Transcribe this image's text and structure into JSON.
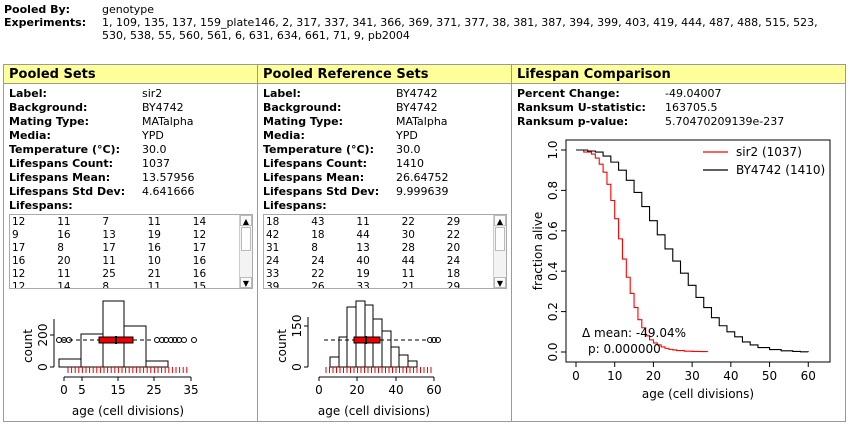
{
  "header": {
    "pooled_by_label": "Pooled By:",
    "pooled_by_value": "genotype",
    "experiments_label": "Experiments:",
    "experiments_line1": "1, 109, 135, 137, 159_plate146, 2, 317, 337, 341, 366, 369, 371, 377, 38, 381, 387, 394, 399, 403, 419, 444, 487, 488, 515, 523,",
    "experiments_line2": "530, 538, 55, 560, 561, 6, 631, 634, 661, 71, 9, pb2004"
  },
  "pooled_sets": {
    "title": "Pooled Sets",
    "rows": [
      {
        "k": "Label:",
        "v": "sir2"
      },
      {
        "k": "Background:",
        "v": "BY4742"
      },
      {
        "k": "Mating Type:",
        "v": "MATalpha"
      },
      {
        "k": "Media:",
        "v": "YPD"
      },
      {
        "k": "Temperature (°C):",
        "v": "30.0"
      },
      {
        "k": "Lifespans Count:",
        "v": "1037"
      },
      {
        "k": "Lifespans Mean:",
        "v": "13.57956"
      },
      {
        "k": "Lifespans Std Dev:",
        "v": "4.641666"
      },
      {
        "k": "Lifespans:",
        "v": ""
      }
    ],
    "lifespans": [
      "12",
      "11",
      "7",
      "11",
      "14",
      "9",
      "16",
      "13",
      "19",
      "12",
      "17",
      "8",
      "17",
      "16",
      "17",
      "16",
      "20",
      "11",
      "10",
      "16",
      "12",
      "11",
      "25",
      "21",
      "16",
      "12",
      "14",
      "8",
      "11",
      "15"
    ],
    "plot": {
      "ylabel": "count",
      "xlabel": "age (cell divisions)",
      "yticks": [
        "0",
        "200"
      ],
      "xticks": [
        "0",
        "5",
        "15",
        "25",
        "35"
      ]
    }
  },
  "pooled_ref_sets": {
    "title": "Pooled Reference Sets",
    "rows": [
      {
        "k": "Label:",
        "v": "BY4742"
      },
      {
        "k": "Background:",
        "v": "BY4742"
      },
      {
        "k": "Mating Type:",
        "v": "MATalpha"
      },
      {
        "k": "Media:",
        "v": "YPD"
      },
      {
        "k": "Temperature (°C):",
        "v": "30.0"
      },
      {
        "k": "Lifespans Count:",
        "v": "1410"
      },
      {
        "k": "Lifespans Mean:",
        "v": "26.64752"
      },
      {
        "k": "Lifespans Std Dev:",
        "v": "9.999639"
      },
      {
        "k": "Lifespans:",
        "v": ""
      }
    ],
    "lifespans": [
      "18",
      "43",
      "11",
      "22",
      "29",
      "42",
      "18",
      "44",
      "30",
      "22",
      "31",
      "8",
      "13",
      "28",
      "20",
      "24",
      "24",
      "40",
      "44",
      "24",
      "33",
      "22",
      "19",
      "11",
      "18",
      "39",
      "26",
      "33",
      "21",
      "29"
    ],
    "plot": {
      "ylabel": "count",
      "xlabel": "age (cell divisions)",
      "yticks": [
        "0",
        "150"
      ],
      "xticks": [
        "0",
        "20",
        "40",
        "60"
      ]
    }
  },
  "lifespan_comparison": {
    "title": "Lifespan Comparison",
    "rows": [
      {
        "k": "Percent Change:",
        "v": "-49.04007"
      },
      {
        "k": "Ranksum U-statistic:",
        "v": "163705.5"
      },
      {
        "k": "Ranksum p-value:",
        "v": "5.70470209139e-237"
      }
    ]
  },
  "chart_data": {
    "type": "line",
    "xlabel": "age (cell divisions)",
    "ylabel": "fraction alive",
    "xlim": [
      0,
      62
    ],
    "ylim": [
      0,
      1
    ],
    "xticks": [
      "0",
      "10",
      "20",
      "30",
      "40",
      "50",
      "60"
    ],
    "yticks": [
      "0.0",
      "0.2",
      "0.4",
      "0.6",
      "0.8",
      "1.0"
    ],
    "legend_position": "top-right",
    "annotation_mean": "Δ mean: -49.04%",
    "annotation_p": "p: 0.000000",
    "series": [
      {
        "name": "sir2 (1037)",
        "color": "#ff0000",
        "x": [
          0,
          2,
          4,
          5,
          6,
          7,
          8,
          9,
          10,
          11,
          12,
          13,
          14,
          15,
          16,
          17,
          18,
          19,
          20,
          21,
          22,
          23,
          24,
          25,
          26,
          28,
          30,
          32,
          34
        ],
        "y": [
          1.0,
          0.99,
          0.98,
          0.96,
          0.93,
          0.89,
          0.83,
          0.75,
          0.66,
          0.56,
          0.46,
          0.37,
          0.29,
          0.22,
          0.16,
          0.12,
          0.08,
          0.06,
          0.045,
          0.035,
          0.025,
          0.018,
          0.013,
          0.01,
          0.007,
          0.004,
          0.003,
          0.002,
          0.001
        ]
      },
      {
        "name": "BY4742 (1410)",
        "color": "#000000",
        "x": [
          0,
          3,
          5,
          7,
          9,
          11,
          13,
          15,
          17,
          19,
          21,
          23,
          25,
          27,
          29,
          31,
          33,
          35,
          37,
          39,
          41,
          43,
          45,
          47,
          50,
          53,
          56,
          58,
          60
        ],
        "y": [
          1.0,
          0.995,
          0.99,
          0.97,
          0.94,
          0.9,
          0.85,
          0.79,
          0.72,
          0.65,
          0.58,
          0.51,
          0.45,
          0.39,
          0.33,
          0.27,
          0.22,
          0.17,
          0.13,
          0.1,
          0.075,
          0.05,
          0.035,
          0.022,
          0.012,
          0.006,
          0.003,
          0.001,
          0.0
        ]
      }
    ]
  }
}
